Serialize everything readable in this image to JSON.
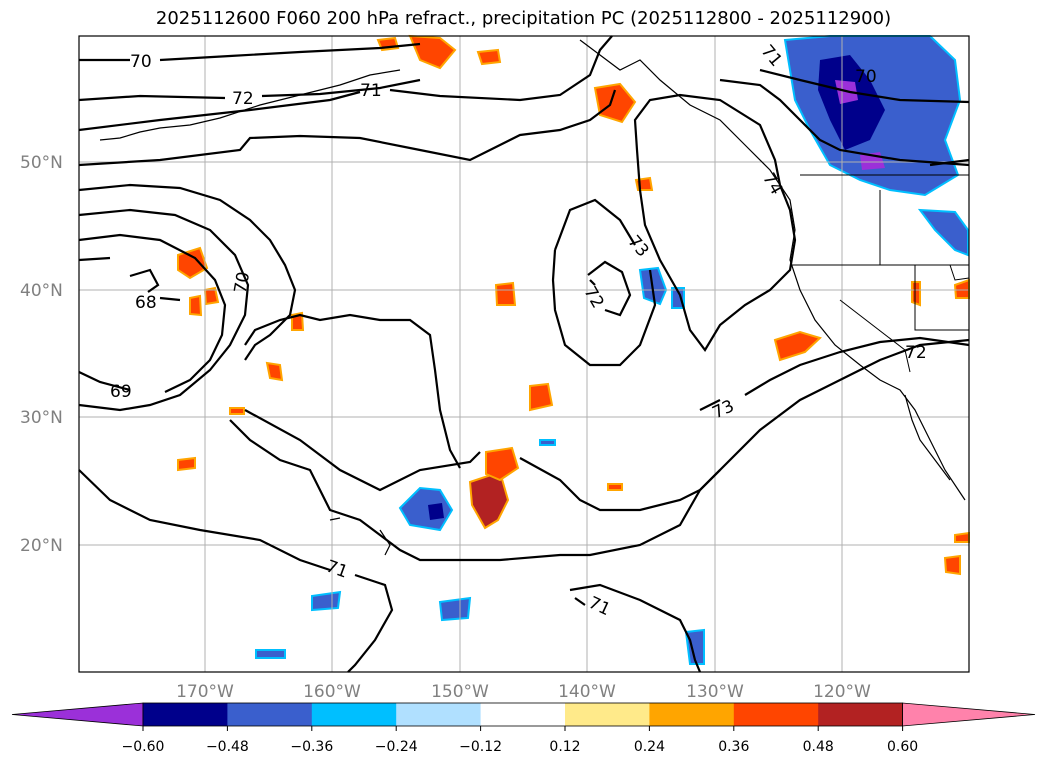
{
  "title": "2025112600 F060 200 hPa refract., precipitation PC (2025112800 - 2025112900)",
  "lat_labels": [
    "50°N",
    "40°N",
    "30°N",
    "20°N"
  ],
  "lon_labels": [
    "170°W",
    "160°W",
    "150°W",
    "140°W",
    "130°W",
    "120°W"
  ],
  "contour_labels": [
    "70",
    "72",
    "71",
    "68",
    "70",
    "69",
    "71",
    "71",
    "73",
    "72",
    "73",
    "72",
    "74",
    "70",
    "71"
  ],
  "colorbar": {
    "colors": [
      "#9b30d9",
      "#00008b",
      "#3a5fcd",
      "#00bfff",
      "#b0e0ff",
      "#ffffff",
      "#ffea8a",
      "#ffa500",
      "#ff4500",
      "#b22222",
      "#ff82ab"
    ],
    "ticks": [
      "−0.60",
      "−0.48",
      "−0.36",
      "−0.24",
      "−0.12",
      "0.12",
      "0.24",
      "0.36",
      "0.48",
      "0.60"
    ]
  }
}
